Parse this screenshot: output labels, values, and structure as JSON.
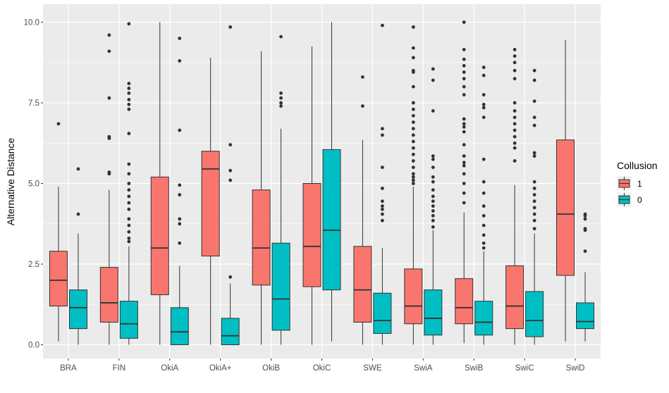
{
  "chart_data": {
    "type": "boxplot",
    "title": "",
    "xlabel": "",
    "ylabel": "Alternative Distance",
    "ylim": [
      -0.45,
      10.5
    ],
    "yticks": [
      0.0,
      2.5,
      5.0,
      7.5,
      10.0
    ],
    "ytick_labels": [
      "0.0",
      "2.5",
      "5.0",
      "7.5",
      "10.0"
    ],
    "categories": [
      "BRA",
      "FIN",
      "OkiA",
      "OkiA+",
      "OkiB",
      "OkiC",
      "SWE",
      "SwiA",
      "SwiB",
      "SwiC",
      "SwiD"
    ],
    "grid": true,
    "legend": {
      "title": "Collusion",
      "position": "right"
    },
    "series": [
      {
        "name": "1",
        "color": "#F8766D",
        "boxes": [
          {
            "min": 0.1,
            "q1": 1.2,
            "median": 2.0,
            "q3": 2.9,
            "max": 4.9,
            "outliers": [
              6.85
            ]
          },
          {
            "min": 0.0,
            "q1": 0.7,
            "median": 1.3,
            "q3": 2.4,
            "max": 4.8,
            "outliers": [
              5.3,
              5.35,
              6.4,
              6.45,
              7.65,
              9.1,
              9.6
            ]
          },
          {
            "min": 0.0,
            "q1": 1.55,
            "median": 3.0,
            "q3": 5.2,
            "max": 10.0,
            "outliers": []
          },
          {
            "min": 0.0,
            "q1": 2.75,
            "median": 5.45,
            "q3": 6.0,
            "max": 8.9,
            "outliers": []
          },
          {
            "min": 0.0,
            "q1": 1.85,
            "median": 3.0,
            "q3": 4.8,
            "max": 9.1,
            "outliers": []
          },
          {
            "min": 0.0,
            "q1": 1.8,
            "median": 3.05,
            "q3": 5.0,
            "max": 9.25,
            "outliers": []
          },
          {
            "min": 0.0,
            "q1": 0.7,
            "median": 1.7,
            "q3": 3.05,
            "max": 6.35,
            "outliers": [
              7.4,
              8.3
            ]
          },
          {
            "min": 0.0,
            "q1": 0.65,
            "median": 1.2,
            "q3": 2.35,
            "max": 4.9,
            "outliers": [
              5.0,
              5.1,
              5.2,
              5.3,
              5.5,
              5.7,
              5.9,
              6.1,
              6.3,
              6.5,
              6.7,
              6.9,
              7.1,
              7.3,
              7.5,
              8.0,
              8.45,
              8.5,
              8.9,
              9.2,
              9.85
            ]
          },
          {
            "min": 0.05,
            "q1": 0.65,
            "median": 1.15,
            "q3": 2.05,
            "max": 4.1,
            "outliers": [
              4.4,
              4.7,
              5.0,
              5.3,
              5.55,
              5.65,
              5.85,
              6.2,
              6.6,
              6.75,
              6.85,
              7.0,
              7.75,
              8.0,
              8.25,
              8.45,
              8.65,
              8.85,
              9.15,
              10.0
            ]
          },
          {
            "min": 0.0,
            "q1": 0.5,
            "median": 1.2,
            "q3": 2.45,
            "max": 4.95,
            "outliers": [
              5.7,
              6.1,
              6.25,
              6.45,
              6.65,
              6.85,
              7.05,
              7.25,
              7.5,
              8.25,
              8.5,
              8.75,
              8.95,
              9.15
            ]
          },
          {
            "min": 0.1,
            "q1": 2.15,
            "median": 4.05,
            "q3": 6.35,
            "max": 9.45,
            "outliers": []
          }
        ]
      },
      {
        "name": "0",
        "color": "#00BFC4",
        "boxes": [
          {
            "min": 0.0,
            "q1": 0.5,
            "median": 1.15,
            "q3": 1.7,
            "max": 3.45,
            "outliers": [
              4.05,
              5.45
            ]
          },
          {
            "min": 0.0,
            "q1": 0.2,
            "median": 0.65,
            "q3": 1.35,
            "max": 3.05,
            "outliers": [
              3.2,
              3.3,
              3.5,
              3.7,
              3.9,
              4.2,
              4.4,
              4.6,
              4.8,
              5.0,
              5.3,
              5.6,
              6.55,
              7.3,
              7.45,
              7.6,
              7.8,
              7.95,
              8.1,
              9.95
            ]
          },
          {
            "min": 0.0,
            "q1": 0.0,
            "median": 0.4,
            "q3": 1.15,
            "max": 2.45,
            "outliers": [
              3.15,
              3.75,
              3.9,
              4.65,
              4.95,
              6.65,
              8.8,
              9.5
            ]
          },
          {
            "min": 0.0,
            "q1": 0.0,
            "median": 0.28,
            "q3": 0.82,
            "max": 1.9,
            "outliers": [
              2.1,
              5.1,
              5.4,
              6.2,
              9.85
            ]
          },
          {
            "min": 0.0,
            "q1": 0.45,
            "median": 1.42,
            "q3": 3.15,
            "max": 6.7,
            "outliers": [
              7.4,
              7.5,
              7.65,
              7.8,
              9.55
            ]
          },
          {
            "min": 0.1,
            "q1": 1.7,
            "median": 3.55,
            "q3": 6.05,
            "max": 10.0,
            "outliers": []
          },
          {
            "min": 0.0,
            "q1": 0.35,
            "median": 0.75,
            "q3": 1.6,
            "max": 3.0,
            "outliers": [
              3.85,
              4.05,
              4.2,
              4.3,
              4.45,
              4.85,
              5.5,
              6.5,
              6.7,
              9.9
            ]
          },
          {
            "min": 0.0,
            "q1": 0.3,
            "median": 0.82,
            "q3": 1.7,
            "max": 3.55,
            "outliers": [
              3.65,
              3.85,
              4.0,
              4.15,
              4.3,
              4.45,
              4.6,
              4.8,
              5.05,
              5.2,
              5.5,
              5.75,
              5.85,
              7.25,
              8.2,
              8.55
            ]
          },
          {
            "min": 0.0,
            "q1": 0.3,
            "median": 0.7,
            "q3": 1.35,
            "max": 2.9,
            "outliers": [
              3.0,
              3.15,
              3.4,
              3.7,
              4.0,
              4.3,
              4.7,
              5.05,
              5.75,
              7.05,
              7.35,
              7.45,
              7.75,
              8.35,
              8.6
            ]
          },
          {
            "min": 0.0,
            "q1": 0.25,
            "median": 0.75,
            "q3": 1.65,
            "max": 3.45,
            "outliers": [
              3.6,
              3.85,
              4.05,
              4.25,
              4.45,
              4.65,
              4.85,
              5.05,
              5.85,
              5.95,
              6.8,
              7.05,
              7.55,
              8.2,
              8.5
            ]
          },
          {
            "min": 0.1,
            "q1": 0.5,
            "median": 0.72,
            "q3": 1.3,
            "max": 2.25,
            "outliers": [
              2.9,
              3.55,
              3.6,
              3.9,
              4.0,
              4.05
            ]
          }
        ]
      }
    ]
  }
}
